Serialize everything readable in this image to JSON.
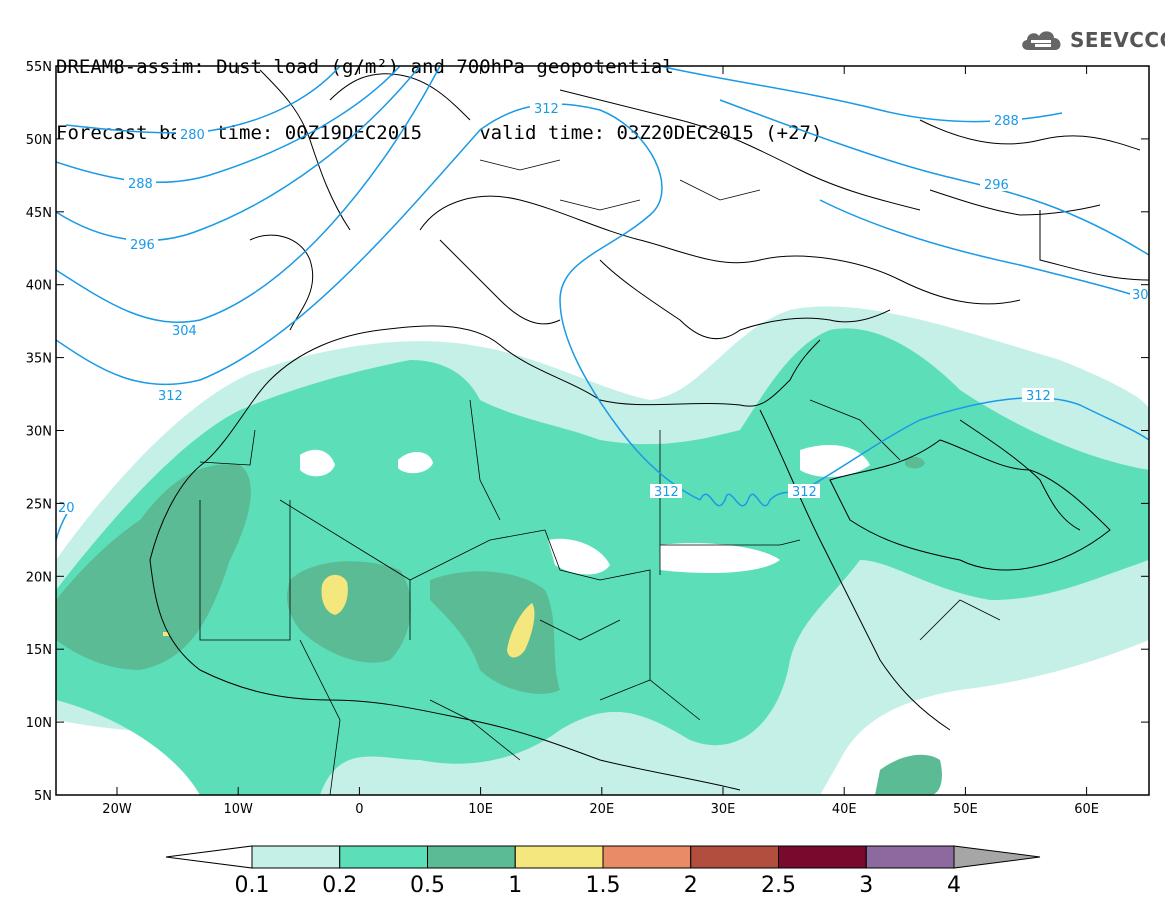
{
  "header": {
    "line1": "DREAM8-assim: Dust load (g/m²) and 700hPa geopotential",
    "line2": "Forecast base time: 00Z19DEC2015     valid time: 03Z20DEC2015 (+27)"
  },
  "logo": {
    "text": "SEEVCCC",
    "icon": "cloud-icon"
  },
  "map": {
    "lat_ticks": [
      "55N",
      "50N",
      "45N",
      "40N",
      "35N",
      "30N",
      "25N",
      "20N",
      "15N",
      "10N",
      "5N"
    ],
    "lon_ticks": [
      "20W",
      "10W",
      "0",
      "10E",
      "20E",
      "30E",
      "40E",
      "50E",
      "60E"
    ]
  },
  "contours": {
    "color": "#1a9ae6",
    "labels": [
      "280",
      "288",
      "296",
      "304",
      "312",
      "312",
      "312",
      "312",
      "312",
      "288",
      "296",
      "30",
      "20"
    ]
  },
  "colorbar": {
    "labels": [
      "0.1",
      "0.2",
      "0.5",
      "1",
      "1.5",
      "2",
      "2.5",
      "3",
      "4"
    ],
    "colors": [
      "#ffffff",
      "#c4f0e8",
      "#5cdfb9",
      "#5bbb95",
      "#f3e77d",
      "#e88c68",
      "#b14e3d",
      "#7a0a2d",
      "#8c6aa0",
      "#a6a6a6"
    ]
  },
  "dust_colors": {
    "light": "#c4f0e8",
    "medium": "#5cdfb9",
    "dark": "#5bbb95",
    "yellow": "#f3e77d"
  }
}
